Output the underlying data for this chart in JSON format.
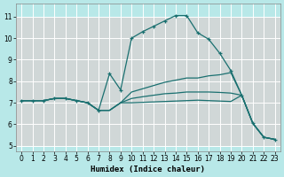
{
  "xlabel": "Humidex (Indice chaleur)",
  "bg_color": "#b8e8e8",
  "grid_color_v": "#ffffff",
  "grid_color_h": "#e8c8c8",
  "line_color": "#1a7070",
  "xlim": [
    -0.5,
    23.5
  ],
  "ylim": [
    4.75,
    11.6
  ],
  "yticks": [
    5,
    6,
    7,
    8,
    9,
    10,
    11
  ],
  "xticks": [
    0,
    1,
    2,
    3,
    4,
    5,
    6,
    7,
    8,
    9,
    10,
    11,
    12,
    13,
    14,
    15,
    16,
    17,
    18,
    19,
    20,
    21,
    22,
    23
  ],
  "lines": [
    {
      "x": [
        0,
        1,
        2,
        3,
        4,
        5,
        6,
        7,
        8,
        9,
        10,
        11,
        12,
        13,
        14,
        15,
        16,
        17,
        18,
        19,
        20,
        21,
        22,
        23
      ],
      "y": [
        7.1,
        7.1,
        7.1,
        7.2,
        7.2,
        7.1,
        7.0,
        6.65,
        8.35,
        7.6,
        10.0,
        10.3,
        10.55,
        10.8,
        11.05,
        11.05,
        10.25,
        9.95,
        9.3,
        8.5,
        7.35,
        6.05,
        5.4,
        5.3
      ],
      "marker": true
    },
    {
      "x": [
        0,
        1,
        2,
        3,
        4,
        5,
        6,
        7,
        8,
        9,
        10,
        11,
        12,
        13,
        14,
        15,
        16,
        17,
        18,
        19,
        20,
        21,
        22,
        23
      ],
      "y": [
        7.1,
        7.1,
        7.1,
        7.2,
        7.2,
        7.1,
        7.0,
        6.65,
        6.65,
        7.0,
        7.5,
        7.65,
        7.8,
        7.95,
        8.05,
        8.15,
        8.15,
        8.25,
        8.3,
        8.4,
        7.35,
        6.05,
        5.4,
        5.3
      ],
      "marker": false
    },
    {
      "x": [
        0,
        1,
        2,
        3,
        4,
        5,
        6,
        7,
        8,
        9,
        10,
        11,
        12,
        13,
        14,
        15,
        16,
        17,
        18,
        19,
        20,
        21,
        22,
        23
      ],
      "y": [
        7.1,
        7.1,
        7.1,
        7.2,
        7.2,
        7.1,
        7.0,
        6.65,
        6.65,
        7.0,
        7.2,
        7.28,
        7.35,
        7.42,
        7.45,
        7.5,
        7.5,
        7.5,
        7.48,
        7.45,
        7.35,
        6.05,
        5.4,
        5.3
      ],
      "marker": false
    },
    {
      "x": [
        0,
        1,
        2,
        3,
        4,
        5,
        6,
        7,
        8,
        9,
        10,
        11,
        12,
        13,
        14,
        15,
        16,
        17,
        18,
        19,
        20,
        21,
        22,
        23
      ],
      "y": [
        7.1,
        7.1,
        7.1,
        7.2,
        7.2,
        7.1,
        7.0,
        6.65,
        6.65,
        7.0,
        7.0,
        7.02,
        7.04,
        7.06,
        7.08,
        7.1,
        7.12,
        7.1,
        7.08,
        7.06,
        7.35,
        6.05,
        5.4,
        5.3
      ],
      "marker": false
    }
  ]
}
